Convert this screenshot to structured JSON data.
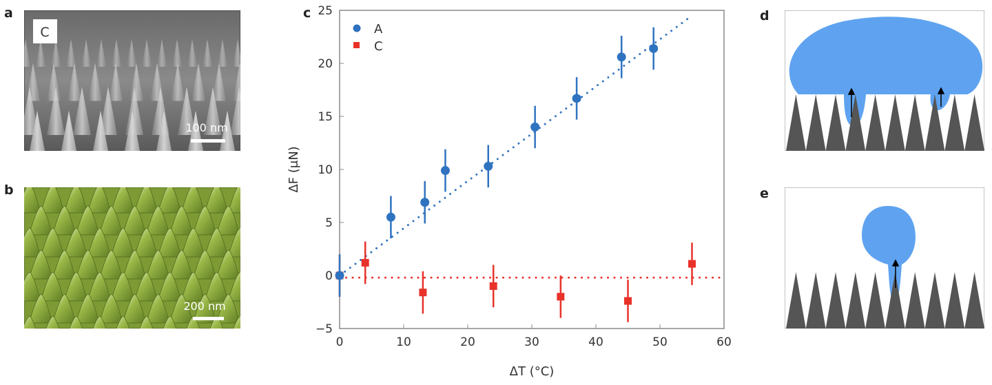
{
  "panels": {
    "a": {
      "label": "a",
      "inset_label": "C",
      "scale_bar": "100 nm"
    },
    "b": {
      "label": "b",
      "scale_bar": "200 nm"
    },
    "c": {
      "label": "c"
    },
    "d": {
      "label": "d"
    },
    "e": {
      "label": "e"
    }
  },
  "colors": {
    "series_A": "#2f73c0",
    "series_C": "#e8322a",
    "droplet": "#5fa3f0",
    "cones": "#555555",
    "afm_green": "#8aa83a"
  },
  "chart_data": {
    "type": "scatter",
    "xlabel": "ΔT (°C)",
    "ylabel": "ΔF (μN)",
    "xlim": [
      0,
      60
    ],
    "ylim": [
      -5,
      25
    ],
    "xticks": [
      0,
      10,
      20,
      30,
      40,
      50,
      60
    ],
    "yticks": [
      -5,
      0,
      5,
      10,
      15,
      20,
      25
    ],
    "legend": "top-left",
    "grid": false,
    "series": [
      {
        "name": "A",
        "marker": "circle",
        "color": "#2f73c0",
        "x": [
          0,
          8,
          13.3,
          16.5,
          23.2,
          30.5,
          37,
          44,
          49
        ],
        "y": [
          0,
          5.5,
          6.9,
          9.9,
          10.3,
          14.0,
          16.7,
          20.6,
          21.4
        ],
        "err": [
          2,
          2,
          2,
          2,
          2,
          2,
          2,
          2,
          2
        ],
        "fit": {
          "style": "dotted",
          "x": [
            0,
            55
          ],
          "y": [
            0,
            24.5
          ]
        }
      },
      {
        "name": "C",
        "marker": "square",
        "color": "#e8322a",
        "x": [
          0,
          4,
          13,
          24,
          34.5,
          45,
          55
        ],
        "y": [
          0,
          1.2,
          -1.6,
          -1,
          -2,
          -2.4,
          1.1
        ],
        "err": [
          2,
          2,
          2,
          2,
          2,
          2,
          2
        ],
        "fit": {
          "style": "dotted",
          "x": [
            0,
            60
          ],
          "y": [
            -0.2,
            -0.2
          ]
        }
      }
    ]
  }
}
